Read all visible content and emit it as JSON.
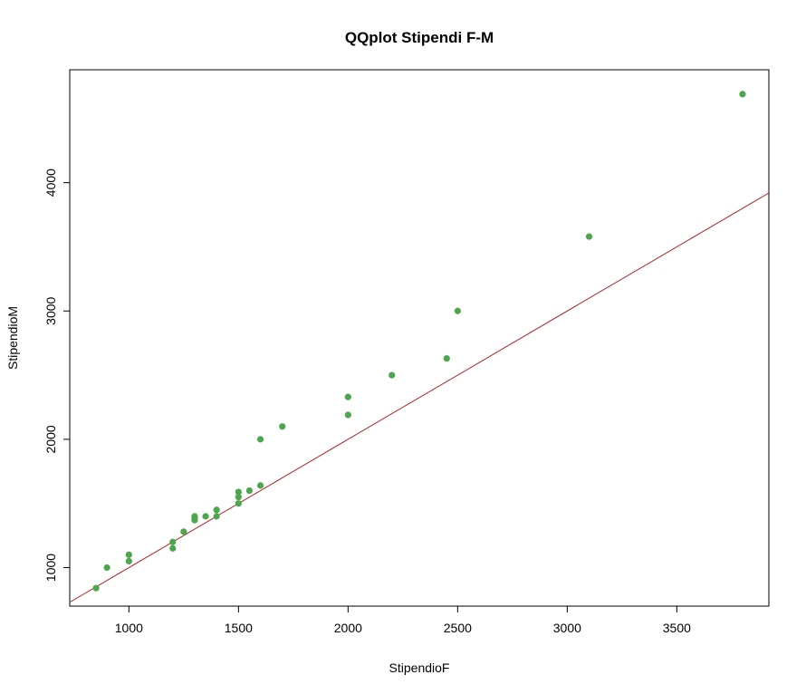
{
  "chart_data": {
    "type": "scatter",
    "title": "QQplot Stipendi F-M",
    "xlabel": "StipendioF",
    "ylabel": "StipendioM",
    "xlim": [
      730,
      3920
    ],
    "ylim": [
      700,
      4880
    ],
    "xticks": [
      1000,
      1500,
      2000,
      2500,
      3000,
      3500
    ],
    "yticks": [
      1000,
      2000,
      3000,
      4000
    ],
    "grid": false,
    "legend": "none",
    "point_color": "#4da64d",
    "reference_line": {
      "slope": 1,
      "intercept": 0,
      "color": "#b22222"
    },
    "points": [
      {
        "x": 850,
        "y": 840
      },
      {
        "x": 900,
        "y": 1000
      },
      {
        "x": 1000,
        "y": 1050
      },
      {
        "x": 1000,
        "y": 1100
      },
      {
        "x": 1200,
        "y": 1150
      },
      {
        "x": 1200,
        "y": 1200
      },
      {
        "x": 1250,
        "y": 1280
      },
      {
        "x": 1300,
        "y": 1370
      },
      {
        "x": 1300,
        "y": 1390
      },
      {
        "x": 1300,
        "y": 1400
      },
      {
        "x": 1350,
        "y": 1400
      },
      {
        "x": 1400,
        "y": 1400
      },
      {
        "x": 1400,
        "y": 1450
      },
      {
        "x": 1500,
        "y": 1500
      },
      {
        "x": 1500,
        "y": 1550
      },
      {
        "x": 1500,
        "y": 1590
      },
      {
        "x": 1550,
        "y": 1600
      },
      {
        "x": 1600,
        "y": 1640
      },
      {
        "x": 1600,
        "y": 2000
      },
      {
        "x": 1700,
        "y": 2100
      },
      {
        "x": 2000,
        "y": 2190
      },
      {
        "x": 2000,
        "y": 2330
      },
      {
        "x": 2200,
        "y": 2500
      },
      {
        "x": 2450,
        "y": 2630
      },
      {
        "x": 2500,
        "y": 3000
      },
      {
        "x": 3100,
        "y": 3580
      },
      {
        "x": 3800,
        "y": 4690
      }
    ]
  }
}
